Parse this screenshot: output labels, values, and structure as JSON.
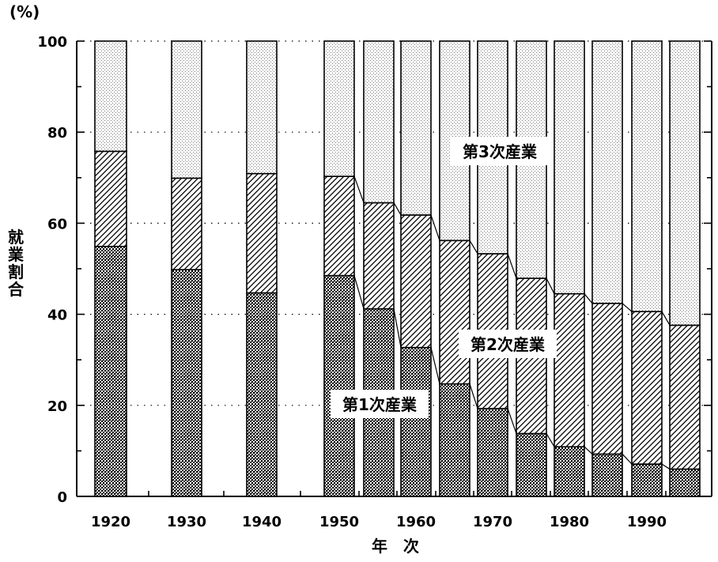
{
  "chart_data": {
    "type": "bar",
    "stacked": true,
    "unit_label": "(%)",
    "xlabel": "年　次",
    "ylabel": "就業割合",
    "ylim": [
      0,
      100
    ],
    "yticks": [
      0,
      20,
      40,
      60,
      80,
      100
    ],
    "grid": "dotted horizontal at major ticks",
    "categories": [
      "1920",
      "1930",
      "1940",
      "1950",
      "1955",
      "1960",
      "1965",
      "1970",
      "1975",
      "1980",
      "1985",
      "1990",
      "1995"
    ],
    "tick_labels": [
      "1920",
      "1930",
      "1940",
      "1950",
      "1960",
      "1970",
      "1980",
      "1990"
    ],
    "series": [
      {
        "name": "第1次産業",
        "pattern": "crosshatch-dark",
        "values": [
          54.9,
          49.8,
          44.7,
          48.5,
          41.2,
          32.7,
          24.7,
          19.3,
          13.8,
          10.9,
          9.3,
          7.1,
          6.0
        ]
      },
      {
        "name": "第2次産業",
        "pattern": "diagonal-hatch",
        "values": [
          20.9,
          20.1,
          26.2,
          21.8,
          23.3,
          29.1,
          31.5,
          34.0,
          34.1,
          33.6,
          33.1,
          33.5,
          31.6
        ]
      },
      {
        "name": "第3次産業",
        "pattern": "light-dots",
        "values": [
          24.2,
          30.1,
          29.1,
          29.7,
          35.5,
          38.2,
          43.8,
          46.7,
          52.1,
          55.5,
          57.6,
          59.4,
          62.4
        ]
      }
    ],
    "connected_from_category": "1950",
    "colors": {
      "ink": "#000000",
      "background": "#ffffff",
      "dots": "#777777"
    }
  }
}
